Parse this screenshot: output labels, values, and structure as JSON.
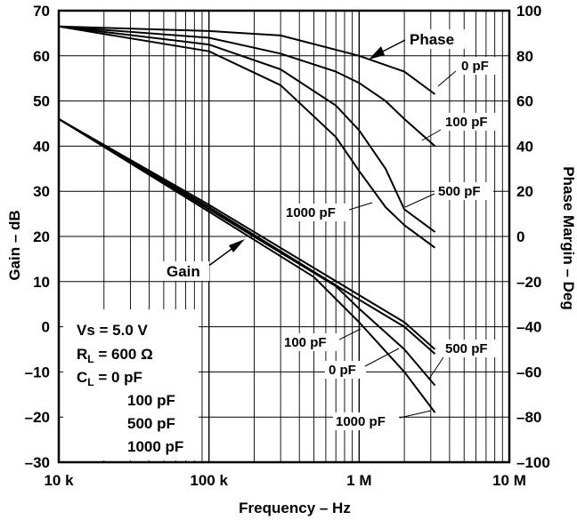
{
  "chart_data": {
    "type": "line",
    "title": "",
    "xlabel": "Frequency – Hz",
    "ylabel": "Gain – dB",
    "y2label": "Phase Margin – Deg",
    "xscale": "log",
    "xlim": [
      10000,
      10000000
    ],
    "ylim": [
      -30,
      70
    ],
    "y2lim": [
      -100,
      100
    ],
    "grid": true,
    "x_ticks": [
      "10 k",
      "100 k",
      "1 M",
      "10 M"
    ],
    "y_ticks": [
      "70",
      "60",
      "50",
      "40",
      "30",
      "20",
      "10",
      "0",
      "–10",
      "–20",
      "–30"
    ],
    "y2_ticks": [
      "100",
      "80",
      "60",
      "40",
      "20",
      "0",
      "–20",
      "–40",
      "–60",
      "–80",
      "–100"
    ],
    "conditions": {
      "vs": "Vs =  5.0 V",
      "rl_main": "R",
      "rl_sub": "L",
      "rl_val": " =  600 Ω",
      "cl_main": "C",
      "cl_sub": "L",
      "cl_val": " =  0 pF",
      "cl_values": [
        "100 pF",
        "500 pF",
        "1000 pF"
      ]
    },
    "annotations": [
      {
        "text": "Phase"
      },
      {
        "text": "Gain"
      },
      {
        "text": "0 pF"
      },
      {
        "text": "100 pF"
      },
      {
        "text": "500 pF"
      },
      {
        "text": "1000 pF"
      },
      {
        "text": "100 pF"
      },
      {
        "text": "0 pF"
      },
      {
        "text": "500 pF"
      },
      {
        "text": "1000 pF"
      }
    ],
    "series": [
      {
        "group": "phase",
        "cl": "0 pF",
        "axis": "right",
        "x": [
          10000,
          100000,
          300000,
          1000000,
          2000000,
          3200000
        ],
        "y": [
          93,
          91,
          89,
          80,
          73,
          63
        ]
      },
      {
        "group": "phase",
        "cl": "100 pF",
        "axis": "right",
        "x": [
          10000,
          100000,
          300000,
          700000,
          1000000,
          1500000,
          2000000,
          3200000
        ],
        "y": [
          93,
          88,
          81,
          73,
          68,
          60,
          52,
          40
        ]
      },
      {
        "group": "phase",
        "cl": "500 pF",
        "axis": "right",
        "x": [
          10000,
          100000,
          300000,
          700000,
          1000000,
          1500000,
          2000000,
          3200000
        ],
        "y": [
          93,
          85,
          74,
          58,
          47,
          30,
          12,
          2
        ]
      },
      {
        "group": "phase",
        "cl": "1000 pF",
        "axis": "right",
        "x": [
          10000,
          100000,
          300000,
          700000,
          1000000,
          1500000,
          2000000,
          3200000
        ],
        "y": [
          93,
          82,
          67,
          44,
          29,
          13,
          5,
          -5
        ]
      },
      {
        "group": "gain",
        "cl": "0 pF",
        "axis": "left",
        "x": [
          10000,
          100000,
          1000000,
          2000000,
          3200000
        ],
        "y": [
          46,
          27,
          7,
          1,
          -5
        ]
      },
      {
        "group": "gain",
        "cl": "100 pF",
        "axis": "left",
        "x": [
          10000,
          100000,
          1000000,
          2000000,
          3200000
        ],
        "y": [
          46,
          26.5,
          6,
          0,
          -6
        ]
      },
      {
        "group": "gain",
        "cl": "500 pF",
        "axis": "left",
        "x": [
          10000,
          100000,
          700000,
          1000000,
          2000000,
          3200000
        ],
        "y": [
          46,
          26,
          9,
          4,
          -5,
          -13
        ]
      },
      {
        "group": "gain",
        "cl": "1000 pF",
        "axis": "left",
        "x": [
          10000,
          100000,
          500000,
          1000000,
          2000000,
          3200000
        ],
        "y": [
          46,
          25.5,
          11,
          1,
          -10,
          -19
        ]
      }
    ]
  }
}
